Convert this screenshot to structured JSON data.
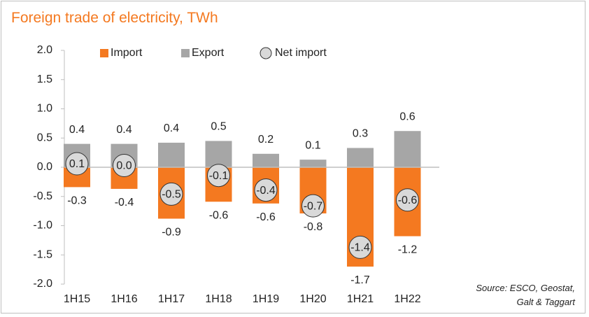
{
  "title": "Foreign trade of electricity, TWh",
  "source": {
    "line1": "Source: ESCO, Geostat,",
    "line2": "Galt & Taggart"
  },
  "colors": {
    "import": "#f47920",
    "export": "#a6a6a6",
    "net_fill": "#d9d9d9",
    "net_stroke": "#333333",
    "axis": "#bfbfbf",
    "text": "#222222",
    "title": "#f47920"
  },
  "chart_data": {
    "type": "bar",
    "title": "Foreign trade of electricity, TWh",
    "categories": [
      "1H15",
      "1H16",
      "1H17",
      "1H18",
      "1H19",
      "1H20",
      "1H21",
      "1H22"
    ],
    "series": [
      {
        "name": "Import",
        "values": [
          -0.34,
          -0.37,
          -0.88,
          -0.59,
          -0.62,
          -0.79,
          -1.7,
          -1.18
        ],
        "labels": [
          "-0.3",
          "-0.4",
          "-0.9",
          "-0.6",
          "-0.6",
          "-0.8",
          "-1.7",
          "-1.2"
        ]
      },
      {
        "name": "Export",
        "values": [
          0.4,
          0.4,
          0.42,
          0.45,
          0.23,
          0.13,
          0.33,
          0.62
        ],
        "labels": [
          "0.4",
          "0.4",
          "0.4",
          "0.5",
          "0.2",
          "0.1",
          "0.3",
          "0.6"
        ]
      },
      {
        "name": "Net import",
        "values": [
          0.06,
          0.03,
          -0.46,
          -0.14,
          -0.39,
          -0.66,
          -1.37,
          -0.56
        ],
        "labels": [
          "0.1",
          "0.0",
          "-0.5",
          "-0.1",
          "-0.4",
          "-0.7",
          "-1.4",
          "-0.6"
        ]
      }
    ],
    "ylim": [
      -2.0,
      2.0
    ],
    "yticks": [
      2.0,
      1.5,
      1.0,
      0.5,
      0.0,
      -0.5,
      -1.0,
      -1.5,
      -2.0
    ],
    "ytick_labels": [
      "2.0",
      "1.5",
      "1.0",
      "0.5",
      "0.0",
      "-0.5",
      "-1.0",
      "-1.5",
      "-2.0"
    ],
    "grid": false,
    "legend_placement": "top"
  }
}
